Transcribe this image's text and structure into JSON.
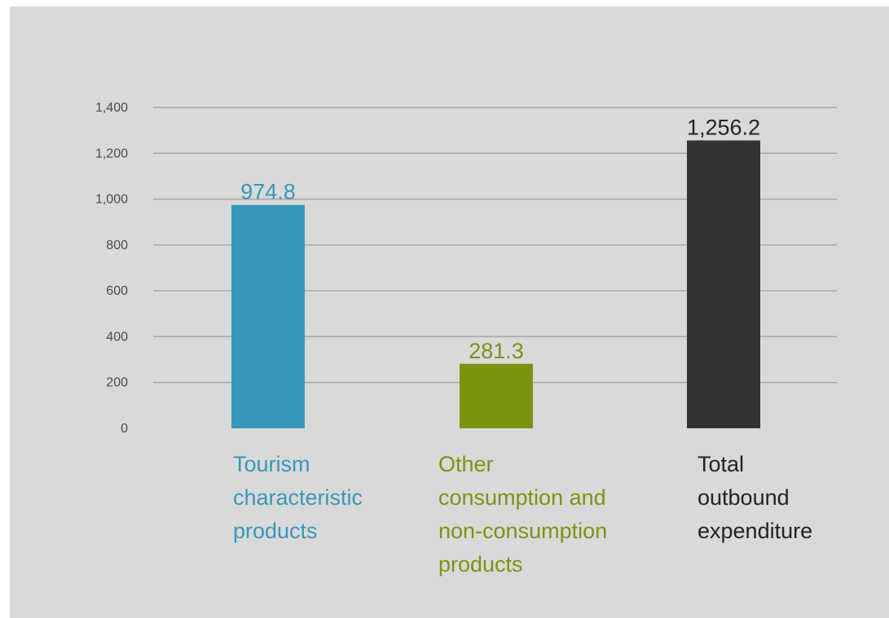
{
  "chart_data": {
    "type": "bar",
    "categories": [
      "Tourism\ncharacteristic\nproducts",
      "Other\nconsumption and\nnon-consumption\nproducts",
      "Total\noutbound\nexpenditure"
    ],
    "values": [
      974.8,
      281.3,
      1256.2
    ],
    "value_labels": [
      "974.8",
      "281.3",
      "1,256.2"
    ],
    "bar_colors": [
      "#3598b9",
      "#7a9412",
      "#333333"
    ],
    "label_colors": [
      "#3598b9",
      "#7a9412",
      "#222222"
    ],
    "ylim": [
      0,
      1400
    ],
    "yticks": [
      0,
      200,
      400,
      600,
      800,
      1000,
      1200,
      1400
    ],
    "ytick_labels": [
      "0",
      "200",
      "400",
      "600",
      "800",
      "1,000",
      "1,200",
      "1,400"
    ],
    "title": "",
    "xlabel": "",
    "ylabel": "",
    "grid": true,
    "legend": "none",
    "background": "#d9d9d9",
    "grid_color": "#a6a6a6"
  }
}
